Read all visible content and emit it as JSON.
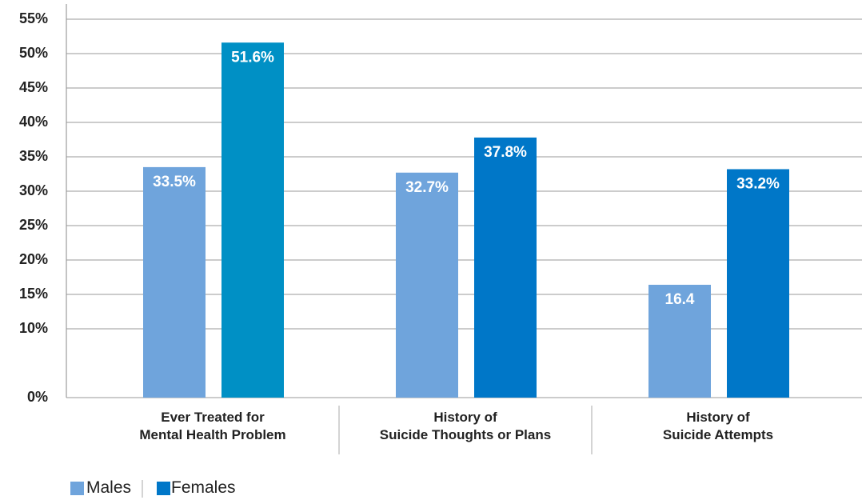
{
  "chart_data": {
    "type": "bar",
    "categories": [
      "Ever Treated for\nMental Health Problem",
      "History of\nSuicide Thoughts or Plans",
      "History of\nSuicide Attempts"
    ],
    "series": [
      {
        "name": "Males",
        "color": "#6fa4dc",
        "values": [
          33.5,
          32.7,
          16.4
        ],
        "value_labels": [
          "33.5%",
          "32.7%",
          "16.4"
        ]
      },
      {
        "name": "Females",
        "color": "#0077c8",
        "colors": [
          "#0090c5",
          "#0077c8",
          "#0077c8"
        ],
        "values": [
          51.6,
          37.8,
          33.2
        ],
        "value_labels": [
          "51.6%",
          "37.8%",
          "33.2%"
        ]
      }
    ],
    "ylim": [
      0,
      55
    ],
    "yticks": [
      {
        "value": 0,
        "label": "0%"
      },
      {
        "value": 10,
        "label": "10%"
      },
      {
        "value": 15,
        "label": "15%"
      },
      {
        "value": 20,
        "label": "20%"
      },
      {
        "value": 25,
        "label": "25%"
      },
      {
        "value": 30,
        "label": "30%"
      },
      {
        "value": 35,
        "label": "35%"
      },
      {
        "value": 40,
        "label": "40%"
      },
      {
        "value": 45,
        "label": "45%"
      },
      {
        "value": 50,
        "label": "50%"
      },
      {
        "value": 55,
        "label": "55%"
      }
    ],
    "grid": true
  }
}
